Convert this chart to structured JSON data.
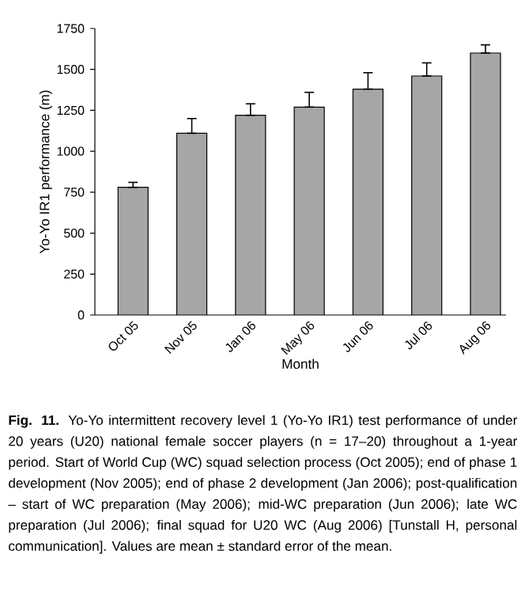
{
  "chart_data": {
    "type": "bar",
    "xlabel": "Month",
    "ylabel": "Yo-Yo IR1 performance (m)",
    "categories": [
      "Oct 05",
      "Nov 05",
      "Jan 06",
      "May 06",
      "Jun 06",
      "Jul 06",
      "Aug 06"
    ],
    "values": [
      780,
      1110,
      1220,
      1270,
      1380,
      1460,
      1600
    ],
    "errors": [
      [
        780,
        810
      ],
      [
        1110,
        1200
      ],
      [
        1220,
        1290
      ],
      [
        1270,
        1360
      ],
      [
        1380,
        1480
      ],
      [
        1460,
        1540
      ],
      [
        1600,
        1650
      ]
    ],
    "color": "#a6a6a6",
    "ylim": [
      0,
      1750
    ],
    "yticks": [
      0,
      250,
      500,
      750,
      1000,
      1250,
      1500,
      1750
    ],
    "annotations": [
      "**Fig. 11.** Yo-Yo intermittent recovery level 1 (Yo-Yo IR1) test performance of under 20 years (U20) national female soccer players (n = 17–20) throughout a 1-year period. Start of World Cup (WC) squad selection process (Oct 2005); end of phase 1 development (Nov 2005); end of phase 2 development (Jan 2006); post-qualification – start of WC preparation (May 2006); mid-WC preparation (Jun 2006); late WC preparation (Jul 2006); final squad for U20 WC (Aug 2006) [Tunstall H, personal communication]. Values are mean ± standard error of the mean."
    ]
  }
}
